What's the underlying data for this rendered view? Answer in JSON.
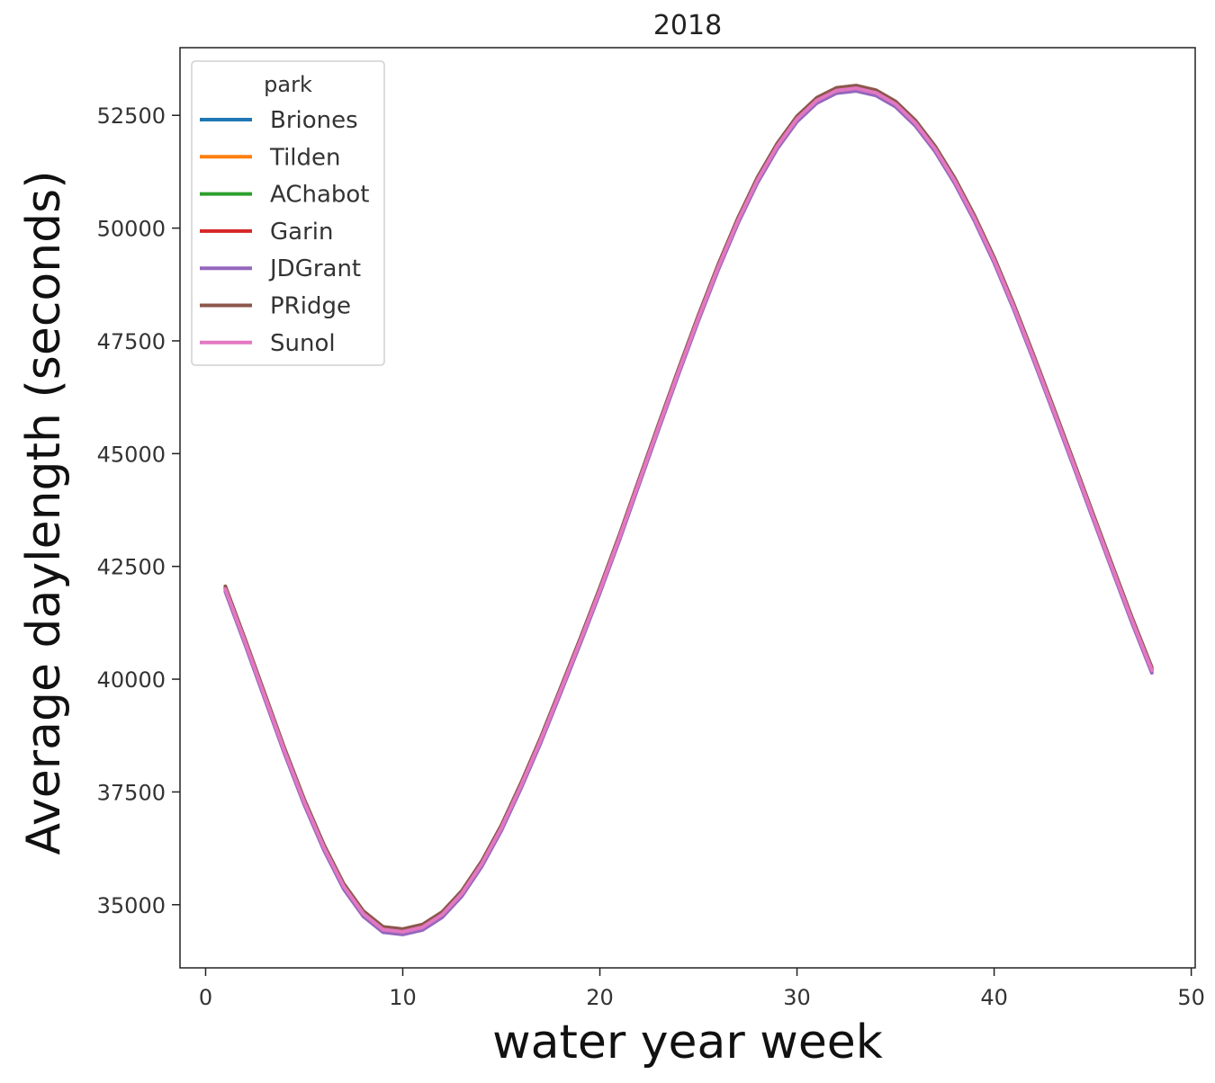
{
  "chart_data": {
    "type": "line",
    "title": "2018",
    "xlabel": "water year week",
    "ylabel": "Average daylength (seconds)",
    "xlim": [
      -1.3,
      50.2
    ],
    "ylim": [
      33600,
      54000
    ],
    "xticks": [
      0,
      10,
      20,
      30,
      40,
      50
    ],
    "yticks": [
      35000,
      37500,
      40000,
      42500,
      45000,
      47500,
      50000,
      52500
    ],
    "grid": false,
    "legend": {
      "title": "park",
      "placement": "top-left"
    },
    "x": [
      1,
      2,
      3,
      4,
      5,
      6,
      7,
      8,
      9,
      10,
      11,
      12,
      13,
      14,
      15,
      16,
      17,
      18,
      19,
      20,
      21,
      22,
      23,
      24,
      25,
      26,
      27,
      28,
      29,
      30,
      31,
      32,
      33,
      34,
      35,
      36,
      37,
      38,
      39,
      40,
      41,
      42,
      43,
      44,
      45,
      46,
      47,
      48
    ],
    "series": [
      {
        "name": "Briones",
        "color": "#1f77b4",
        "values": [
          42000,
          40830,
          39620,
          38410,
          37280,
          36270,
          35410,
          34800,
          34450,
          34400,
          34500,
          34780,
          35250,
          35900,
          36700,
          37640,
          38650,
          39740,
          40840,
          41970,
          43150,
          44390,
          45620,
          46830,
          48010,
          49130,
          50160,
          51070,
          51820,
          52420,
          52830,
          53050,
          53100,
          53000,
          52750,
          52330,
          51760,
          51050,
          50220,
          49290,
          48250,
          47130,
          45980,
          44810,
          43630,
          42460,
          41300,
          40200
        ],
        "offset": 0
      },
      {
        "name": "Tilden",
        "color": "#ff7f0e",
        "values": [
          42000,
          40830,
          39620,
          38410,
          37280,
          36270,
          35410,
          34800,
          34450,
          34400,
          34500,
          34780,
          35250,
          35900,
          36700,
          37640,
          38650,
          39740,
          40840,
          41970,
          43150,
          44390,
          45620,
          46830,
          48010,
          49130,
          50160,
          51070,
          51820,
          52420,
          52830,
          53050,
          53100,
          53000,
          52750,
          52330,
          51760,
          51050,
          50220,
          49290,
          48250,
          47130,
          45980,
          44810,
          43630,
          42460,
          41300,
          40200
        ],
        "offset": 20
      },
      {
        "name": "AChabot",
        "color": "#2ca02c",
        "values": [
          42000,
          40830,
          39620,
          38410,
          37280,
          36270,
          35410,
          34800,
          34450,
          34400,
          34500,
          34780,
          35250,
          35900,
          36700,
          37640,
          38650,
          39740,
          40840,
          41970,
          43150,
          44390,
          45620,
          46830,
          48010,
          49130,
          50160,
          51070,
          51820,
          52420,
          52830,
          53050,
          53100,
          53000,
          52750,
          52330,
          51760,
          51050,
          50220,
          49290,
          48250,
          47130,
          45980,
          44810,
          43630,
          42460,
          41300,
          40200
        ],
        "offset": -10
      },
      {
        "name": "Garin",
        "color": "#d62728",
        "values": [
          42000,
          40830,
          39620,
          38410,
          37280,
          36270,
          35410,
          34800,
          34450,
          34400,
          34500,
          34780,
          35250,
          35900,
          36700,
          37640,
          38650,
          39740,
          40840,
          41970,
          43150,
          44390,
          45620,
          46830,
          48010,
          49130,
          50160,
          51070,
          51820,
          52420,
          52830,
          53050,
          53100,
          53000,
          52750,
          52330,
          51760,
          51050,
          50220,
          49290,
          48250,
          47130,
          45980,
          44810,
          43630,
          42460,
          41300,
          40200
        ],
        "offset": 10
      },
      {
        "name": "JDGrant",
        "color": "#9467bd",
        "values": [
          42000,
          40830,
          39620,
          38410,
          37280,
          36270,
          35410,
          34800,
          34450,
          34400,
          34500,
          34780,
          35250,
          35900,
          36700,
          37640,
          38650,
          39740,
          40840,
          41970,
          43150,
          44390,
          45620,
          46830,
          48010,
          49130,
          50160,
          51070,
          51820,
          52420,
          52830,
          53050,
          53100,
          53000,
          52750,
          52330,
          51760,
          51050,
          50220,
          49290,
          48250,
          47130,
          45980,
          44810,
          43630,
          42460,
          41300,
          40200
        ],
        "offset": -60
      },
      {
        "name": "PRidge",
        "color": "#8c564b",
        "values": [
          42000,
          40830,
          39620,
          38410,
          37280,
          36270,
          35410,
          34800,
          34450,
          34400,
          34500,
          34780,
          35250,
          35900,
          36700,
          37640,
          38650,
          39740,
          40840,
          41970,
          43150,
          44390,
          45620,
          46830,
          48010,
          49130,
          50160,
          51070,
          51820,
          52420,
          52830,
          53050,
          53100,
          53000,
          52750,
          52330,
          51760,
          51050,
          50220,
          49290,
          48250,
          47130,
          45980,
          44810,
          43630,
          42460,
          41300,
          40200
        ],
        "offset": 60
      },
      {
        "name": "Sunol",
        "color": "#e377c2",
        "values": [
          42000,
          40830,
          39620,
          38410,
          37280,
          36270,
          35410,
          34800,
          34450,
          34400,
          34500,
          34780,
          35250,
          35900,
          36700,
          37640,
          38650,
          39740,
          40840,
          41970,
          43150,
          44390,
          45620,
          46830,
          48010,
          49130,
          50160,
          51070,
          51820,
          52420,
          52830,
          53050,
          53100,
          53000,
          52750,
          52330,
          51760,
          51050,
          50220,
          49290,
          48250,
          47130,
          45980,
          44810,
          43630,
          42460,
          41300,
          40200
        ],
        "offset": 0
      }
    ]
  }
}
